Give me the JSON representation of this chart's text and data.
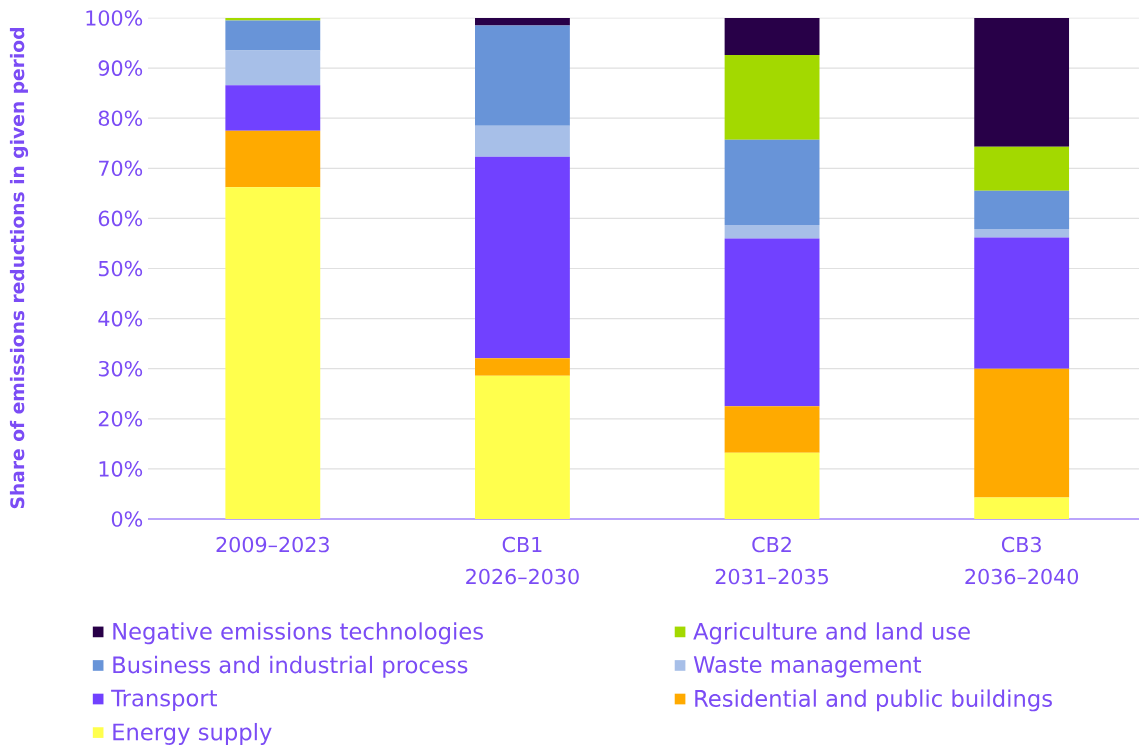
{
  "chart_data": {
    "type": "bar",
    "stacked": true,
    "ylabel": "Share of emissions reductions in given period",
    "categories": [
      "2009–2023",
      "CB1 2026–2030",
      "CB2 2031–2035",
      "CB3 2036–2040"
    ],
    "series": [
      {
        "name": "Energy supply",
        "color": "#ffff4d",
        "values": [
          66.2,
          28.6,
          13.2,
          4.3
        ]
      },
      {
        "name": "Residential and public buildings",
        "color": "#ffaa00",
        "values": [
          11.3,
          3.5,
          9.3,
          25.7
        ]
      },
      {
        "name": "Transport",
        "color": "#7141ff",
        "values": [
          9.1,
          40.2,
          33.5,
          26.2
        ]
      },
      {
        "name": "Waste management",
        "color": "#a7bfe8",
        "values": [
          6.9,
          6.2,
          2.7,
          1.7
        ]
      },
      {
        "name": "Business and industrial process",
        "color": "#6894d8",
        "values": [
          6.0,
          20.0,
          17.0,
          7.6
        ]
      },
      {
        "name": "Agriculture and land use",
        "color": "#a3d900",
        "values": [
          0.5,
          0,
          16.9,
          8.8
        ]
      },
      {
        "name": "Negative emissions technologies",
        "color": "#280048",
        "values": [
          0,
          1.5,
          7.4,
          25.7
        ]
      }
    ],
    "ylim": [
      0,
      100
    ],
    "yticks": [
      {
        "value": 0,
        "label": "0%"
      },
      {
        "value": 10,
        "label": "10%"
      },
      {
        "value": 20,
        "label": "20%"
      },
      {
        "value": 30,
        "label": "30%"
      },
      {
        "value": 40,
        "label": "40%"
      },
      {
        "value": 50,
        "label": "50%"
      },
      {
        "value": 60,
        "label": "60%"
      },
      {
        "value": 70,
        "label": "70%"
      },
      {
        "value": 80,
        "label": "80%"
      },
      {
        "value": 90,
        "label": "90%"
      },
      {
        "value": 100,
        "label": "100%"
      }
    ],
    "grid": "y",
    "legend": "bottom"
  }
}
